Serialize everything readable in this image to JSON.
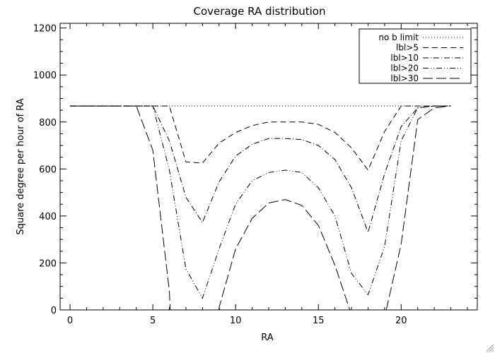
{
  "chart_data": {
    "type": "line",
    "title": "Coverage RA distribution",
    "xlabel": "RA",
    "ylabel": "Square degree per hour of RA",
    "xlim": [
      -0.6,
      24.6
    ],
    "ylim": [
      0,
      1220
    ],
    "xticks": [
      0,
      5,
      10,
      15,
      20
    ],
    "yticks": [
      0,
      200,
      400,
      600,
      800,
      1000,
      1200
    ],
    "grid": false,
    "legend_position": "top-right",
    "series": [
      {
        "name": "no b limit",
        "dash": "dotted",
        "x": [
          0,
          23
        ],
        "y": [
          868,
          868
        ]
      },
      {
        "name": "lbl>5",
        "dash": "dashed",
        "x": [
          0,
          1,
          2,
          3,
          4,
          5,
          6,
          7,
          8,
          9,
          10,
          11,
          12,
          13,
          14,
          15,
          16,
          17,
          18,
          19,
          20,
          21,
          22,
          23
        ],
        "y": [
          868,
          868,
          868,
          868,
          868,
          868,
          868,
          630,
          625,
          710,
          755,
          785,
          800,
          800,
          800,
          790,
          755,
          690,
          595,
          760,
          868,
          868,
          868,
          868
        ]
      },
      {
        "name": "lbl>10",
        "dash": "dash-dot",
        "x": [
          0,
          1,
          2,
          3,
          4,
          5,
          6,
          7,
          8,
          9,
          10,
          11,
          12,
          13,
          14,
          15,
          16,
          17,
          18,
          19,
          20,
          21,
          22,
          23
        ],
        "y": [
          868,
          868,
          868,
          868,
          868,
          868,
          720,
          480,
          372,
          545,
          655,
          705,
          730,
          730,
          725,
          700,
          640,
          520,
          330,
          580,
          780,
          860,
          868,
          868
        ]
      },
      {
        "name": "lbl>20",
        "dash": "dash-dot-dot",
        "x": [
          0,
          1,
          2,
          3,
          4,
          5,
          6,
          7,
          8,
          9,
          10,
          11,
          12,
          13,
          14,
          15,
          16,
          17,
          18,
          19,
          20,
          21,
          22,
          23
        ],
        "y": [
          868,
          868,
          868,
          868,
          868,
          868,
          595,
          175,
          50,
          260,
          450,
          550,
          585,
          595,
          585,
          520,
          400,
          155,
          65,
          270,
          720,
          860,
          868,
          868
        ]
      },
      {
        "name": "lbl>30",
        "dash": "long-dash",
        "x": [
          0,
          1,
          2,
          3,
          4,
          5,
          6,
          6.05
        ],
        "y": [
          868,
          868,
          868,
          868,
          868,
          680,
          80,
          0
        ]
      },
      {
        "name": "lbl>30",
        "dash": "long-dash",
        "x": [
          9.05,
          9,
          10,
          11,
          12,
          13,
          14,
          15,
          16,
          16.9
        ],
        "y": [
          0,
          10,
          260,
          390,
          455,
          470,
          445,
          360,
          190,
          0
        ]
      },
      {
        "name": "lbl>30",
        "dash": "long-dash",
        "x": [
          19.1,
          20,
          21,
          22,
          23
        ],
        "y": [
          0,
          280,
          810,
          860,
          868
        ]
      }
    ],
    "legend": [
      "no b limit",
      "lbl>5",
      "lbl>10",
      "lbl>20",
      "lbl>30"
    ]
  }
}
